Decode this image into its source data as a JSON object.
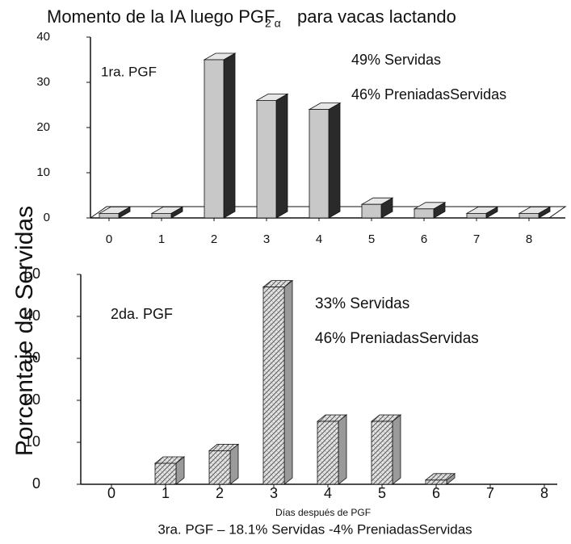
{
  "figure": {
    "title": "Momento de la IA luego PGF",
    "title_subscript": "2 α",
    "title_suffix": "para vacas lactando",
    "ylabel": "Porcentaje de Servidas",
    "xlabel": "Días después de PGF",
    "footer": "3ra. PGF – 18.1% Servidas  -4% PreniadasServidas"
  },
  "chart_data": [
    {
      "type": "bar",
      "annotations": [
        "1ra. PGF",
        "49% Servidas",
        "46% PreniadasServidas"
      ],
      "categories": [
        "0",
        "1",
        "2",
        "3",
        "4",
        "5",
        "6",
        "7",
        "8"
      ],
      "values": [
        1,
        1,
        35,
        26,
        24,
        3,
        2,
        1,
        1
      ],
      "color": "#c8c8c8",
      "side_color": "#2a2a2a",
      "ylim": [
        0,
        40
      ],
      "yticks": [
        0,
        10,
        20,
        30,
        40
      ]
    },
    {
      "type": "bar",
      "annotations": [
        "2da. PGF",
        "33% Servidas",
        "46% PreniadasServidas"
      ],
      "categories": [
        "0",
        "1",
        "2",
        "3",
        "4",
        "5",
        "6",
        "7",
        "8"
      ],
      "values": [
        0,
        5,
        8,
        47,
        15,
        15,
        1,
        0,
        0
      ],
      "color": "#d8d8d8",
      "side_color": "#9a9a9a",
      "hatch": true,
      "ylim": [
        0,
        50
      ],
      "yticks": [
        0,
        10,
        20,
        30,
        40,
        50
      ]
    }
  ]
}
